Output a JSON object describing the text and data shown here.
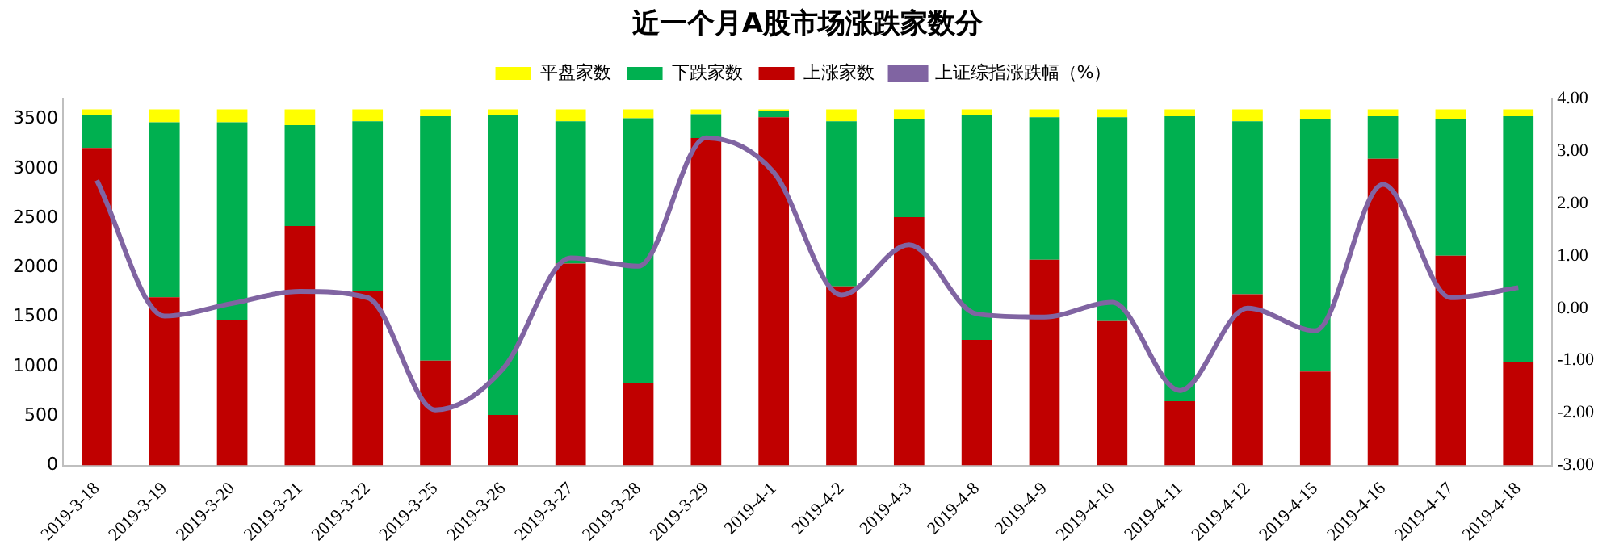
{
  "chart_data": {
    "type": "bar",
    "title": "近一个月A股市场涨跌家数分",
    "stacked": true,
    "legend": "top",
    "grid": false,
    "marker": "none",
    "categories": [
      "2019-3-18",
      "2019-3-19",
      "2019-3-20",
      "2019-3-21",
      "2019-3-22",
      "2019-3-25",
      "2019-3-26",
      "2019-3-27",
      "2019-3-28",
      "2019-3-29",
      "2019-4-1",
      "2019-4-2",
      "2019-4-3",
      "2019-4-8",
      "2019-4-9",
      "2019-4-10",
      "2019-4-11",
      "2019-4-12",
      "2019-4-15",
      "2019-4-16",
      "2019-4-17",
      "2019-4-18"
    ],
    "ylim": [
      0,
      3710
    ],
    "yticks": [
      0,
      500,
      1000,
      1500,
      2000,
      2500,
      3000,
      3500
    ],
    "y2lim": [
      -3,
      4
    ],
    "y2ticks": [
      {
        "value": -3,
        "label": "-3.00"
      },
      {
        "value": -2,
        "label": "-2.00"
      },
      {
        "value": -1,
        "label": "-1.00"
      },
      {
        "value": 0,
        "label": "0.00"
      },
      {
        "value": 1,
        "label": "1.00"
      },
      {
        "value": 2,
        "label": "2.00"
      },
      {
        "value": 3,
        "label": "3.00"
      },
      {
        "value": 4,
        "label": "4.00"
      }
    ],
    "series": [
      {
        "name": "上涨家数",
        "color": "#c00000",
        "values": [
          3210,
          1700,
          1470,
          2420,
          1760,
          1060,
          510,
          2040,
          830,
          3310,
          3520,
          1810,
          2510,
          1270,
          2080,
          1460,
          650,
          1730,
          950,
          3100,
          2120,
          1040
        ]
      },
      {
        "name": "下跌家数",
        "color": "#00b050",
        "values": [
          330,
          1770,
          2000,
          1020,
          1720,
          2470,
          3030,
          1440,
          2680,
          240,
          60,
          1670,
          990,
          2270,
          1440,
          2060,
          2880,
          1750,
          2550,
          430,
          1380,
          2490
        ]
      },
      {
        "name": "平盘家数",
        "color": "#ffff00",
        "values": [
          60,
          130,
          130,
          160,
          120,
          70,
          60,
          120,
          90,
          50,
          20,
          120,
          100,
          60,
          80,
          80,
          70,
          120,
          100,
          70,
          100,
          70
        ]
      },
      {
        "name": "上证综指涨跌幅（%）",
        "type": "line",
        "axis": "y2",
        "color": "#8064a2",
        "values": [
          2.44,
          -0.15,
          0.09,
          0.32,
          0.2,
          -1.94,
          -1.16,
          0.96,
          0.8,
          3.25,
          2.59,
          0.25,
          1.21,
          -0.11,
          -0.17,
          0.11,
          -1.57,
          0,
          -0.43,
          2.36,
          0.2,
          0.39
        ]
      }
    ]
  }
}
